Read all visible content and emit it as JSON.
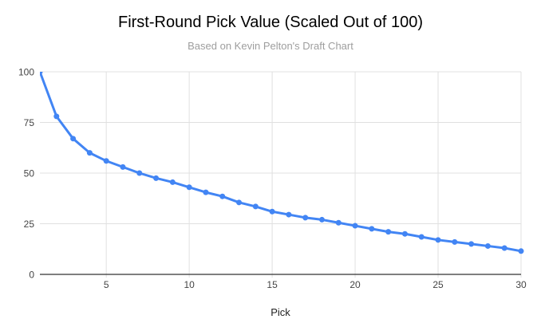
{
  "chart": {
    "title": "First-Round Pick Value (Scaled Out of 100)",
    "subtitle": "Based on Kevin Pelton's Draft Chart",
    "xlabel": "Pick"
  },
  "chart_data": {
    "type": "line",
    "title": "First-Round Pick Value (Scaled Out of 100)",
    "subtitle": "Based on Kevin Pelton's Draft Chart",
    "xlabel": "Pick",
    "ylabel": "",
    "x": [
      1,
      2,
      3,
      4,
      5,
      6,
      7,
      8,
      9,
      10,
      11,
      12,
      13,
      14,
      15,
      16,
      17,
      18,
      19,
      20,
      21,
      22,
      23,
      24,
      25,
      26,
      27,
      28,
      29,
      30
    ],
    "series": [
      {
        "name": "First-Round Pick Value",
        "values": [
          100,
          78,
          67,
          60,
          56,
          53,
          50,
          47.5,
          45.5,
          43,
          40.5,
          38.5,
          35.5,
          33.5,
          31,
          29.5,
          28,
          27,
          25.5,
          24,
          22.5,
          21,
          20,
          18.5,
          17,
          16,
          15,
          14,
          13,
          11.5
        ]
      }
    ],
    "xlim": [
      1,
      30
    ],
    "ylim": [
      0,
      100
    ],
    "x_ticks": [
      5,
      10,
      15,
      20,
      25,
      30
    ],
    "y_ticks": [
      0,
      25,
      50,
      75,
      100
    ],
    "grid": true,
    "legend": false,
    "line_color": "#4285f4",
    "marker": "circle"
  },
  "colors": {
    "line": "#4285f4",
    "grid": "#e0e0e0",
    "axis": "#333333",
    "tick_text": "#444444",
    "title_text": "#000000",
    "subtitle_text": "#9e9e9e",
    "background": "#ffffff"
  }
}
